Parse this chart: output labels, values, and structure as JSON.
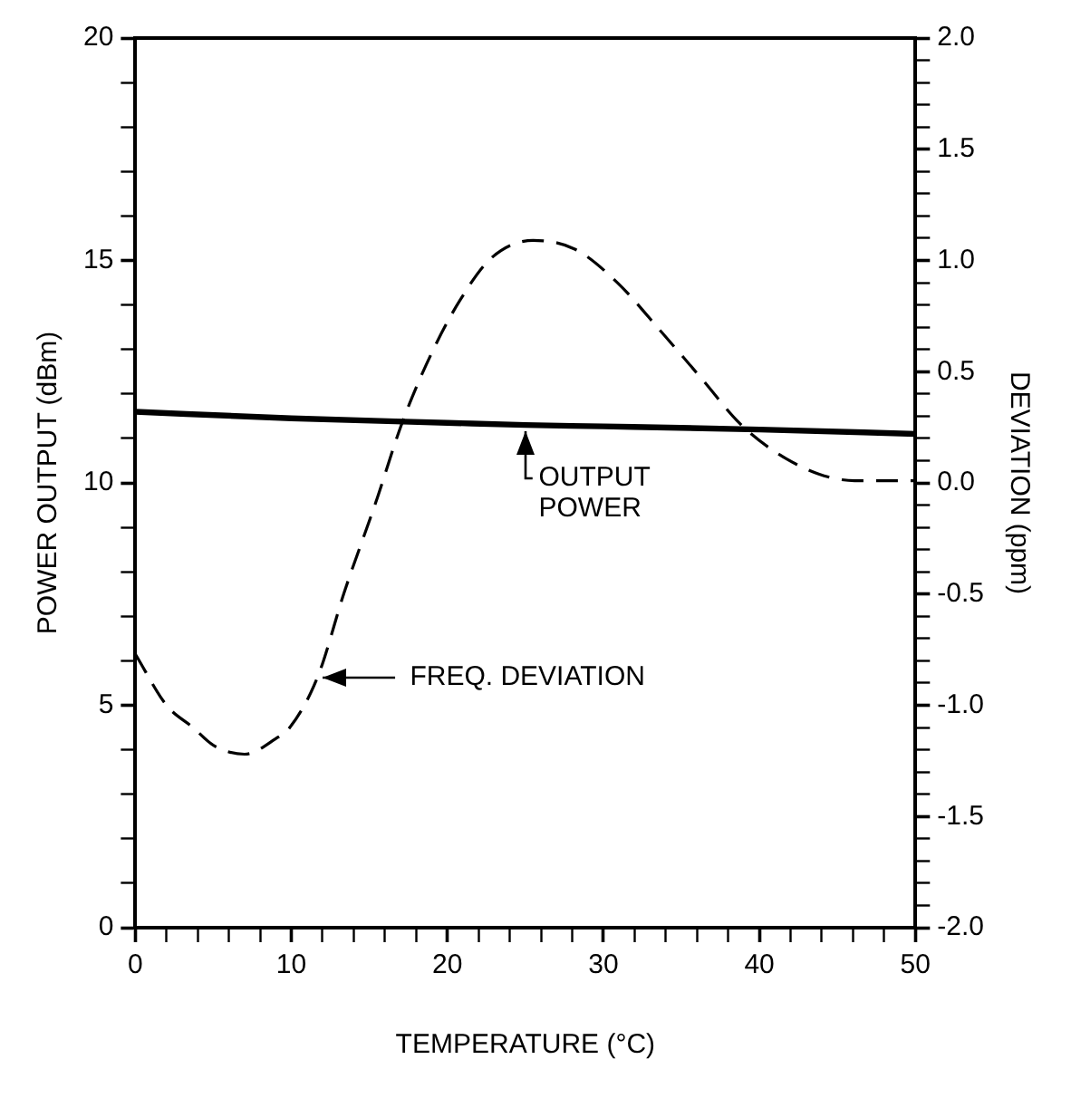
{
  "chart_data": {
    "type": "line",
    "xlabel": "TEMPERATURE (°C)",
    "ylabel": "POWER OUTPUT (dBm)",
    "y2label": "DEVIATION (ppm)",
    "xlim": [
      0,
      50
    ],
    "xticks": [
      0,
      {
        "value": 2,
        "label": null
      },
      {
        "value": 4,
        "label": null
      },
      {
        "value": 6,
        "label": null
      },
      {
        "value": 8,
        "label": null
      },
      10,
      {
        "value": 12,
        "label": null
      },
      {
        "value": 14,
        "label": null
      },
      {
        "value": 16,
        "label": null
      },
      {
        "value": 18,
        "label": null
      },
      20,
      {
        "value": 22,
        "label": null
      },
      {
        "value": 24,
        "label": null
      },
      {
        "value": 26,
        "label": null
      },
      {
        "value": 28,
        "label": null
      },
      30,
      {
        "value": 32,
        "label": null
      },
      {
        "value": 34,
        "label": null
      },
      {
        "value": 36,
        "label": null
      },
      {
        "value": 38,
        "label": null
      },
      40,
      {
        "value": 42,
        "label": null
      },
      {
        "value": 44,
        "label": null
      },
      {
        "value": 46,
        "label": null
      },
      {
        "value": 48,
        "label": null
      },
      50
    ],
    "ylim": [
      0,
      20
    ],
    "yticks": [
      0,
      {
        "value": 1,
        "label": null
      },
      {
        "value": 2,
        "label": null
      },
      {
        "value": 3,
        "label": null
      },
      {
        "value": 4,
        "label": null
      },
      5,
      {
        "value": 6,
        "label": null
      },
      {
        "value": 7,
        "label": null
      },
      {
        "value": 8,
        "label": null
      },
      {
        "value": 9,
        "label": null
      },
      10,
      {
        "value": 11,
        "label": null
      },
      {
        "value": 12,
        "label": null
      },
      {
        "value": 13,
        "label": null
      },
      {
        "value": 14,
        "label": null
      },
      15,
      {
        "value": 16,
        "label": null
      },
      {
        "value": 17,
        "label": null
      },
      {
        "value": 18,
        "label": null
      },
      {
        "value": 19,
        "label": null
      },
      20
    ],
    "y2lim": [
      -2,
      2
    ],
    "y2ticks": [
      {
        "value": -2,
        "label": "-2.0"
      },
      {
        "value": -1.9,
        "label": null
      },
      {
        "value": -1.8,
        "label": null
      },
      {
        "value": -1.7,
        "label": null
      },
      {
        "value": -1.6,
        "label": null
      },
      {
        "value": -1.5,
        "label": "-1.5"
      },
      {
        "value": -1.4,
        "label": null
      },
      {
        "value": -1.3,
        "label": null
      },
      {
        "value": -1.2,
        "label": null
      },
      {
        "value": -1.1,
        "label": null
      },
      {
        "value": -1,
        "label": "-1.0"
      },
      {
        "value": -0.9,
        "label": null
      },
      {
        "value": -0.8,
        "label": null
      },
      {
        "value": -0.7,
        "label": null
      },
      {
        "value": -0.6,
        "label": null
      },
      {
        "value": -0.5,
        "label": "-0.5"
      },
      {
        "value": -0.4,
        "label": null
      },
      {
        "value": -0.3,
        "label": null
      },
      {
        "value": -0.2,
        "label": null
      },
      {
        "value": -0.1,
        "label": null
      },
      {
        "value": 0,
        "label": "0.0"
      },
      {
        "value": 0.1,
        "label": null
      },
      {
        "value": 0.2,
        "label": null
      },
      {
        "value": 0.3,
        "label": null
      },
      {
        "value": 0.4,
        "label": null
      },
      {
        "value": 0.5,
        "label": "0.5"
      },
      {
        "value": 0.6,
        "label": null
      },
      {
        "value": 0.7,
        "label": null
      },
      {
        "value": 0.8,
        "label": null
      },
      {
        "value": 0.9,
        "label": null
      },
      {
        "value": 1,
        "label": "1.0"
      },
      {
        "value": 1.1,
        "label": null
      },
      {
        "value": 1.2,
        "label": null
      },
      {
        "value": 1.3,
        "label": null
      },
      {
        "value": 1.4,
        "label": null
      },
      {
        "value": 1.5,
        "label": "1.5"
      },
      {
        "value": 1.6,
        "label": null
      },
      {
        "value": 1.7,
        "label": null
      },
      {
        "value": 1.8,
        "label": null
      },
      {
        "value": 1.9,
        "label": null
      },
      {
        "value": 2,
        "label": "2.0"
      }
    ],
    "series": [
      {
        "color": "#000000",
        "line_style": "solid",
        "x": [
          0,
          10,
          20,
          25,
          30,
          40,
          50
        ],
        "values": [
          11.6,
          11.45,
          11.35,
          11.3,
          11.27,
          11.2,
          11.1
        ]
      },
      {
        "color": "#000000",
        "line_style": "dashed",
        "axis": "y2",
        "x": [
          0,
          2,
          3.7,
          5,
          7,
          9,
          9.9,
          11.7,
          13.4,
          15.4,
          17.1,
          18.9,
          20.8,
          22.8,
          25.5,
          28.2,
          30.9,
          33.7,
          36.4,
          38.7,
          41,
          43.8,
          46.1,
          50
        ],
        "values": [
          -0.77,
          -1.0,
          -1.1,
          -1.18,
          -1.22,
          -1.15,
          -1.1,
          -0.87,
          -0.49,
          -0.09,
          0.27,
          0.57,
          0.82,
          1.01,
          1.09,
          1.05,
          0.9,
          0.68,
          0.46,
          0.27,
          0.14,
          0.04,
          0.01,
          0.01
        ]
      }
    ],
    "annotations": [
      "OUTPUT POWER",
      "FREQ. DEVIATION"
    ],
    "grid": false,
    "legend": false,
    "marker": "none"
  }
}
